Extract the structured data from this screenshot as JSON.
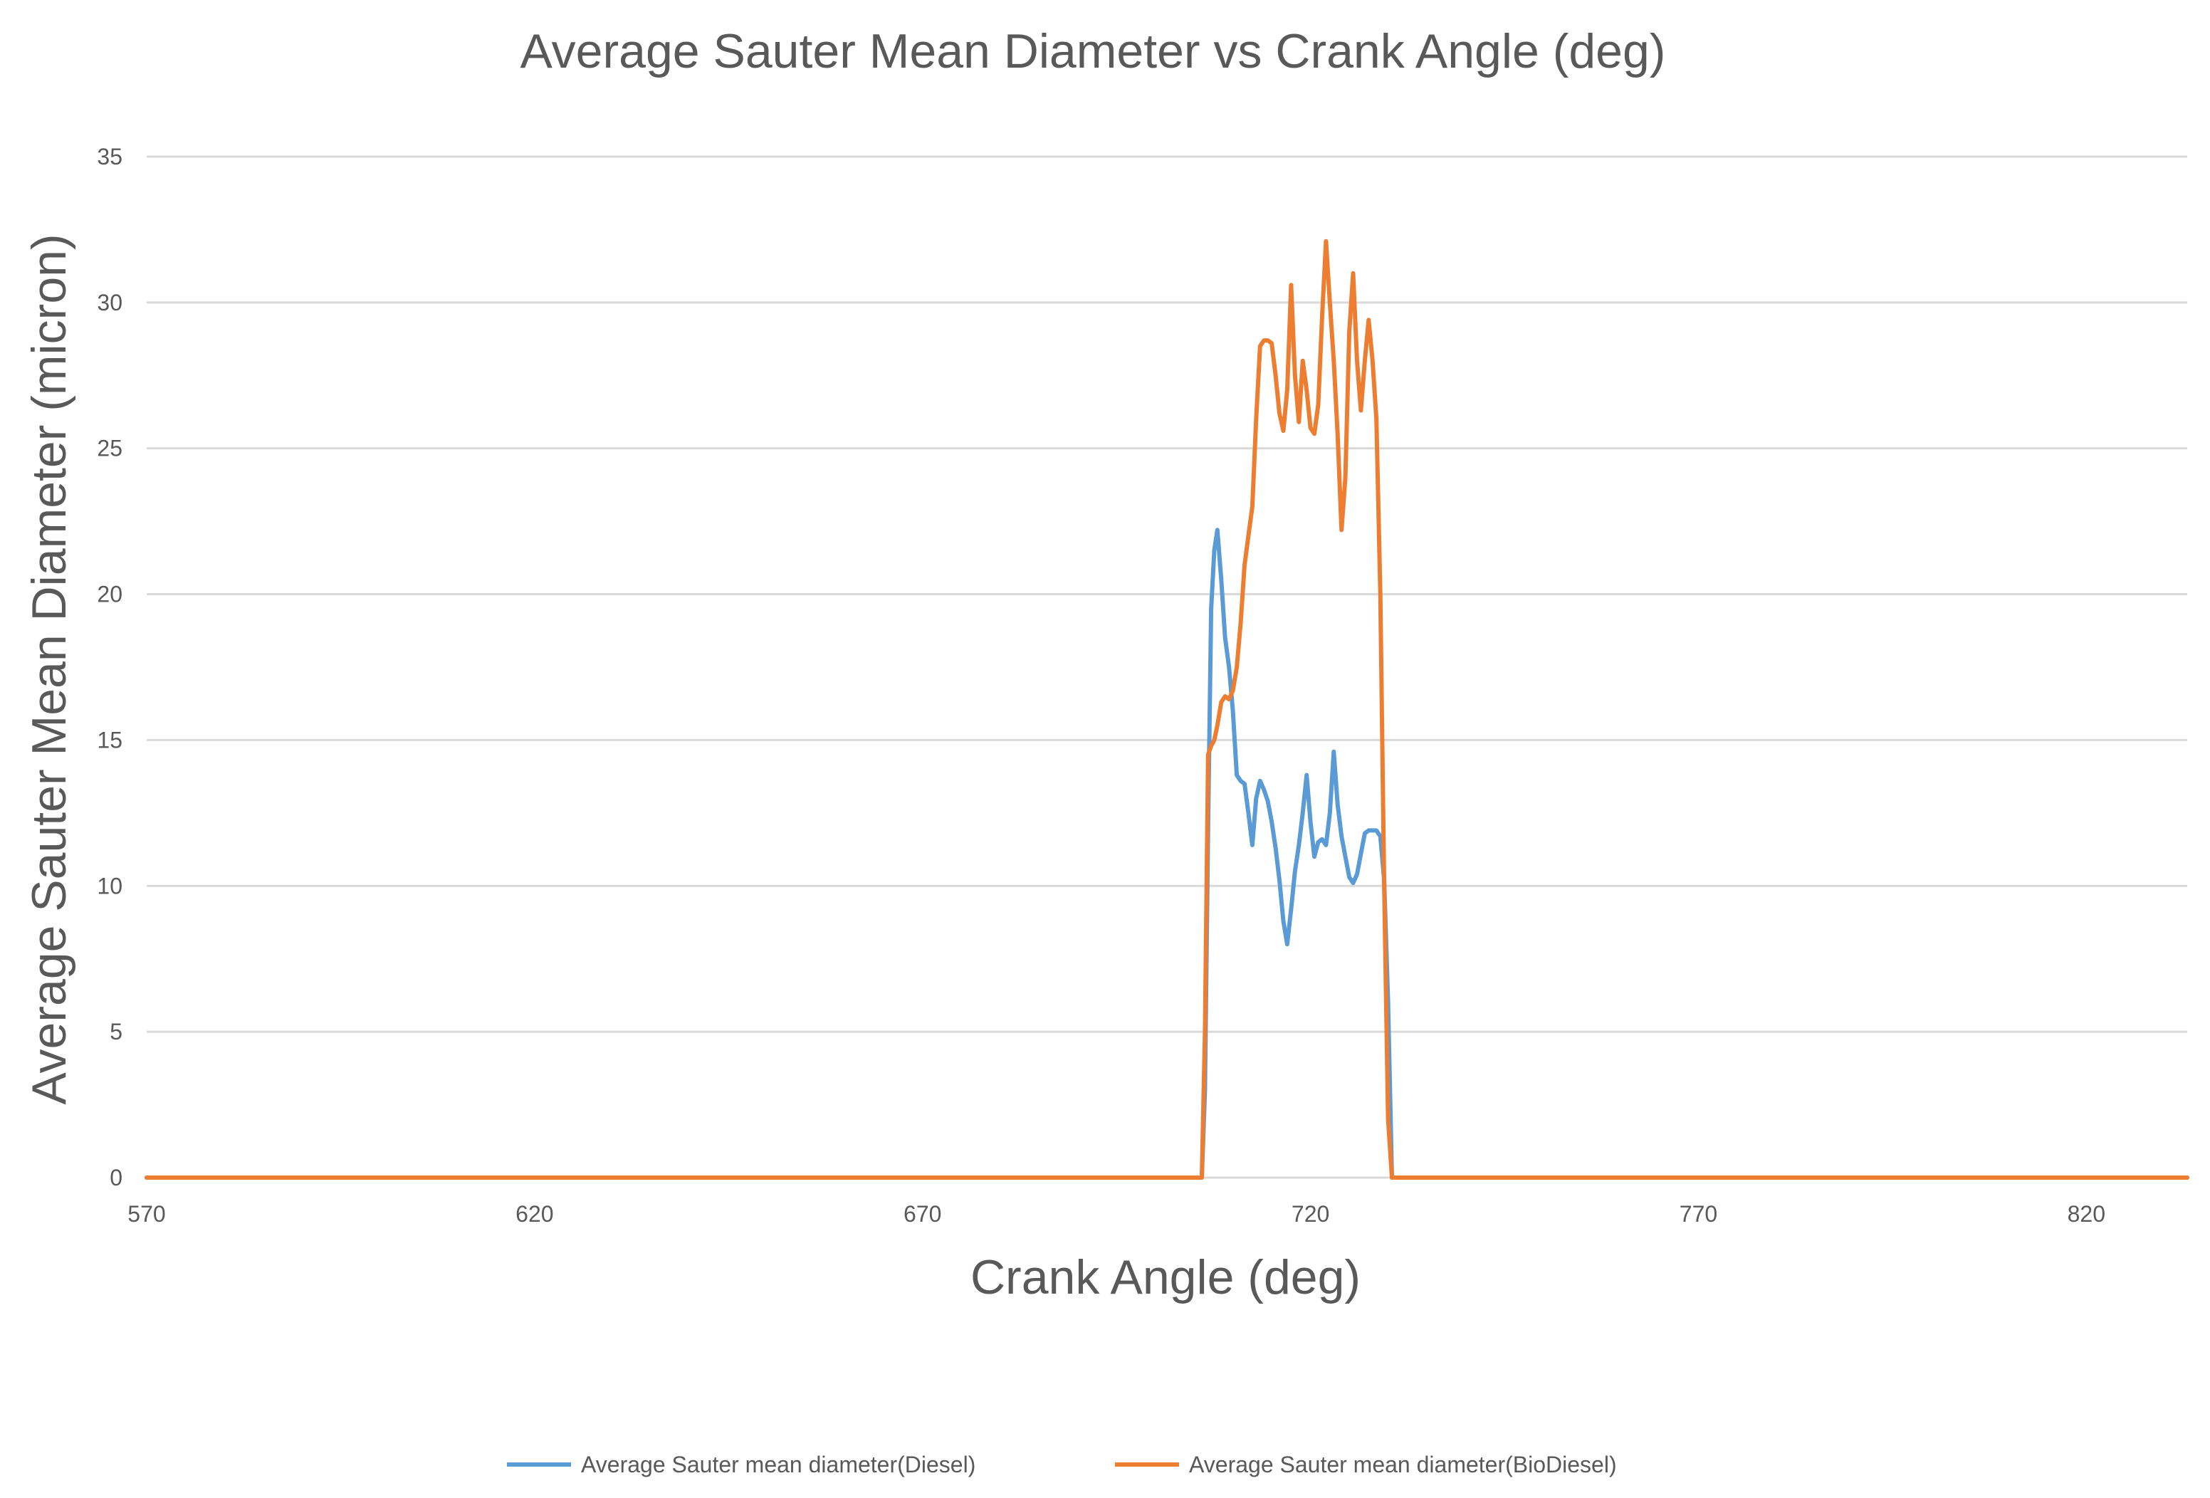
{
  "chart_data": {
    "type": "line",
    "title": "Average Sauter Mean Diameter vs Crank Angle (deg)",
    "xlabel": "Crank Angle (deg)",
    "ylabel": "Average Sauter Mean Diameter  (micron)",
    "xlim": [
      570,
      833
    ],
    "ylim": [
      0,
      35
    ],
    "xticks": [
      570,
      620,
      670,
      720,
      770,
      820
    ],
    "yticks": [
      0,
      5,
      10,
      15,
      20,
      25,
      30,
      35
    ],
    "grid": "horizontal",
    "legend_position": "bottom",
    "series": [
      {
        "name": "Average Sauter mean diameter(Diesel)",
        "color": "#5b9bd5",
        "x": [
          570,
          706,
          706.4,
          706.8,
          707.2,
          707.6,
          708,
          708.5,
          709,
          709.5,
          710,
          710.5,
          711,
          711.5,
          712,
          712.5,
          713,
          713.5,
          714,
          714.5,
          715,
          715.5,
          716,
          716.5,
          717,
          717.5,
          718,
          718.5,
          719,
          719.5,
          720,
          720.5,
          721,
          721.5,
          722,
          722.5,
          723,
          723.5,
          724,
          724.5,
          725,
          725.5,
          726,
          726.5,
          727,
          727.5,
          728,
          728.5,
          729,
          729.5,
          730,
          730.5,
          731,
          731.5,
          732,
          732.5,
          733,
          733.5,
          734,
          734.5,
          735,
          833
        ],
        "y": [
          0,
          0,
          3,
          12,
          19.5,
          21.5,
          22.2,
          20.5,
          18.5,
          17.5,
          16,
          13.8,
          13.6,
          13.5,
          12.5,
          11.4,
          13,
          13.6,
          13.3,
          12.9,
          12.2,
          11.3,
          10.2,
          8.8,
          8.0,
          9.2,
          10.5,
          11.4,
          12.5,
          13.8,
          12.2,
          11.0,
          11.5,
          11.6,
          11.4,
          12.5,
          14.6,
          12.8,
          11.7,
          11.0,
          10.3,
          10.1,
          10.4,
          11.1,
          11.8,
          11.9,
          11.9,
          11.9,
          11.7,
          10.2,
          6,
          0,
          0,
          0,
          0,
          0,
          0,
          0,
          0,
          0,
          0,
          0
        ]
      },
      {
        "name": "Average Sauter mean diameter(BioDiesel)",
        "color": "#ed7d31",
        "x": [
          570,
          706,
          706.4,
          706.8,
          707.2,
          707.6,
          708,
          708.5,
          709,
          709.5,
          710,
          710.5,
          711,
          711.5,
          712,
          712.5,
          713,
          713.5,
          714,
          714.5,
          715,
          715.5,
          716,
          716.5,
          717,
          717.5,
          718,
          718.5,
          719,
          719.5,
          720,
          720.5,
          721,
          721.5,
          722,
          722.5,
          723,
          723.5,
          724,
          724.5,
          725,
          725.5,
          726,
          726.5,
          727,
          727.5,
          728,
          728.5,
          729,
          729.5,
          730,
          730.5,
          731,
          731.5,
          732,
          732.5,
          733,
          733.5,
          734,
          734.5,
          735,
          833
        ],
        "y": [
          0,
          0,
          5,
          14.5,
          14.8,
          15.0,
          15.5,
          16.3,
          16.5,
          16.4,
          16.7,
          17.5,
          19,
          21,
          22,
          23,
          26,
          28.5,
          28.7,
          28.7,
          28.6,
          27.5,
          26.2,
          25.6,
          27.0,
          30.6,
          27.5,
          25.9,
          28.0,
          27.0,
          25.7,
          25.5,
          26.5,
          29.5,
          32.1,
          30.0,
          28.0,
          25.5,
          22.2,
          24.0,
          29.0,
          31.0,
          28.0,
          26.3,
          28.0,
          29.4,
          28.0,
          26.0,
          20,
          10,
          2,
          0,
          0,
          0,
          0,
          0,
          0,
          0,
          0,
          0,
          0,
          0
        ]
      }
    ]
  }
}
